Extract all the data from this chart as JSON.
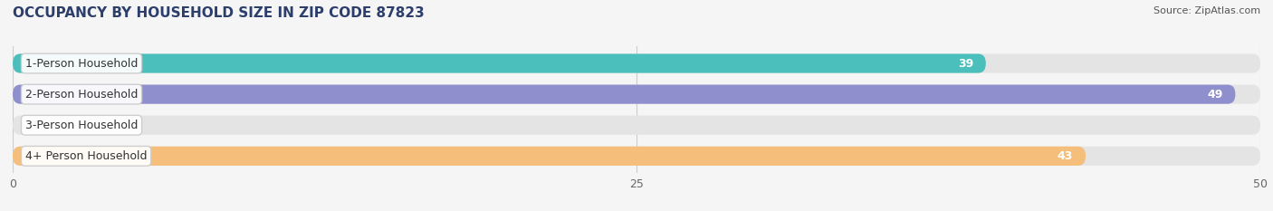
{
  "title": "OCCUPANCY BY HOUSEHOLD SIZE IN ZIP CODE 87823",
  "source": "Source: ZipAtlas.com",
  "categories": [
    "1-Person Household",
    "2-Person Household",
    "3-Person Household",
    "4+ Person Household"
  ],
  "values": [
    39,
    49,
    0,
    43
  ],
  "bar_colors": [
    "#4BBFBC",
    "#8E8FCC",
    "#F2A0B5",
    "#F5BE7A"
  ],
  "xlim": [
    0,
    50
  ],
  "xticks": [
    0,
    25,
    50
  ],
  "bg_bar_color": "#e4e4e4",
  "title_fontsize": 11,
  "source_fontsize": 8,
  "label_fontsize": 9,
  "value_fontsize": 9
}
